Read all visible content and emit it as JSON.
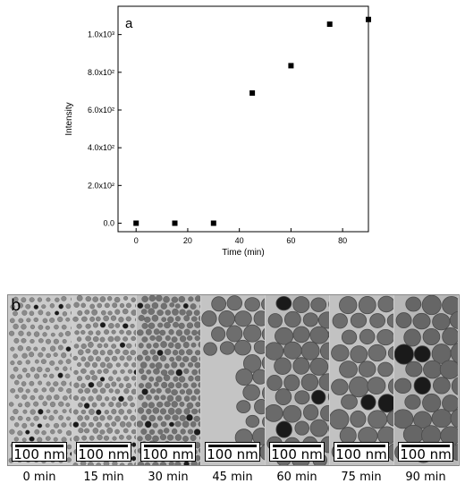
{
  "chart_data": {
    "type": "scatter",
    "panel_label": "a",
    "xlabel": "Time (min)",
    "ylabel": "Intensity",
    "xlim": [
      -7,
      90
    ],
    "ylim": [
      -45,
      1150
    ],
    "x_ticks": [
      0,
      20,
      40,
      60,
      80
    ],
    "y_ticks": [
      0,
      200,
      400,
      600,
      800,
      1000
    ],
    "y_tick_labels": [
      "0.0",
      "2.0x10²",
      "4.0x10²",
      "6.0x10²",
      "8.0x10²",
      "1.0x10³"
    ],
    "marker": "square",
    "series": [
      {
        "x": [
          0,
          15,
          30,
          45,
          60,
          75,
          90
        ],
        "y": [
          0,
          0,
          0,
          690,
          835,
          1055,
          1080
        ]
      }
    ],
    "grid": false
  },
  "panel_b": {
    "label": "b",
    "scale_text": "100 nm",
    "times": [
      "0 min",
      "15 min",
      "30 min",
      "45 min",
      "60 min",
      "75 min",
      "90 min"
    ]
  }
}
